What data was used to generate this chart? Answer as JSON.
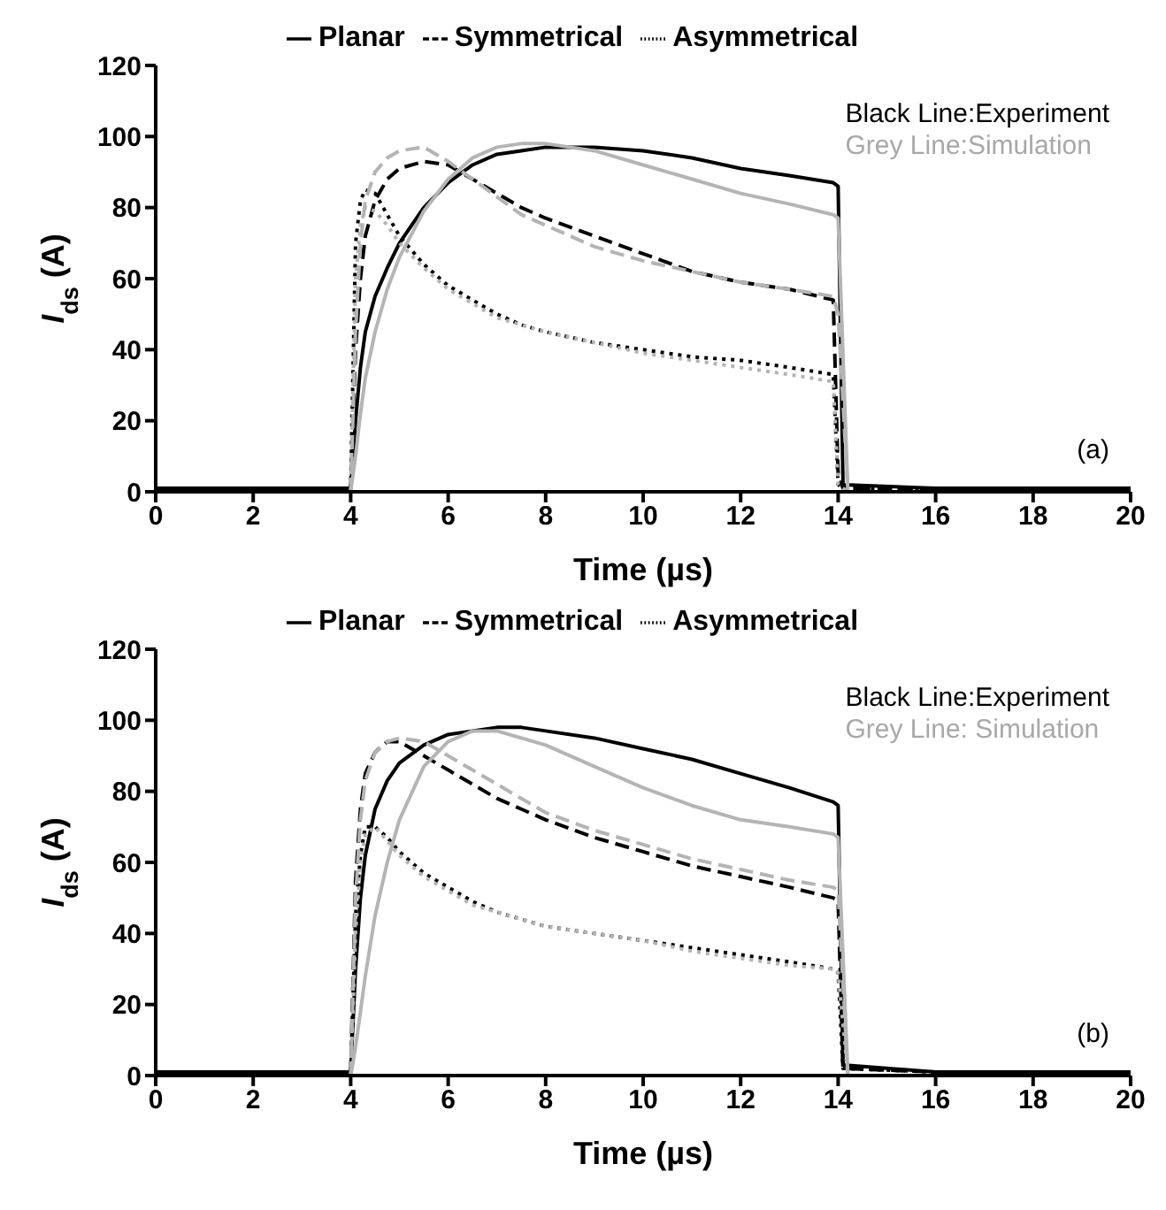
{
  "chart_data": [
    {
      "type": "line",
      "xlabel": "Time (µs)",
      "ylabel": "I$_{ds}$ (A)",
      "xlim": [
        0,
        20
      ],
      "ylim": [
        0,
        120
      ],
      "xticks": [
        0,
        2,
        4,
        6,
        8,
        10,
        12,
        14,
        16,
        18,
        20
      ],
      "yticks": [
        0,
        20,
        40,
        60,
        80,
        100,
        120
      ],
      "grid": false,
      "legend": "top",
      "marker": "none",
      "annotations": [
        "Black Line:Experiment",
        "Grey Line:Simulation",
        "(a)"
      ],
      "series": [
        {
          "name": "Planar",
          "color": "#000000",
          "line_style": "solid",
          "x": [
            0,
            2,
            4,
            4.1,
            4.2,
            4.3,
            4.5,
            4.75,
            5,
            5.5,
            6,
            6.5,
            7,
            7.5,
            8,
            9,
            10,
            11,
            12,
            13,
            13.9,
            14,
            14.1,
            16,
            18,
            20
          ],
          "values": [
            1,
            1,
            1,
            20,
            35,
            45,
            55,
            63,
            70,
            80,
            87,
            92,
            95,
            96,
            97,
            97,
            96,
            94,
            91,
            89,
            87,
            86,
            2,
            1,
            1,
            1
          ]
        },
        {
          "name": "Symmetrical",
          "color": "#000000",
          "line_style": "dashed",
          "x": [
            0,
            2,
            4,
            4.1,
            4.2,
            4.3,
            4.5,
            4.75,
            5,
            5.5,
            6,
            6.5,
            7,
            7.5,
            8,
            9,
            10,
            11,
            12,
            13,
            13.9,
            14,
            14.1,
            16,
            18,
            20
          ],
          "values": [
            1,
            1,
            1,
            40,
            60,
            72,
            82,
            88,
            91,
            93,
            92,
            88,
            84,
            80,
            77,
            72,
            67,
            62,
            59,
            57,
            54,
            5,
            1,
            1,
            1,
            1
          ]
        },
        {
          "name": "Asymmetrical",
          "color": "#000000",
          "line_style": "dotted",
          "x": [
            0,
            2,
            4,
            4.1,
            4.2,
            4.3,
            4.5,
            4.75,
            5,
            5.5,
            6,
            6.5,
            7,
            7.5,
            8,
            9,
            10,
            11,
            12,
            13,
            13.9,
            14,
            14.1,
            16,
            18,
            20
          ],
          "values": [
            1,
            1,
            1,
            70,
            82,
            85,
            84,
            78,
            72,
            64,
            58,
            54,
            50,
            47,
            45,
            42,
            40,
            38,
            37,
            35,
            33,
            2,
            1,
            1,
            1,
            1
          ]
        },
        {
          "color": "#b4b4b4",
          "line_style": "solid",
          "x": [
            4,
            4.1,
            4.2,
            4.3,
            4.5,
            4.75,
            5,
            5.5,
            6,
            6.5,
            7,
            7.5,
            8,
            9,
            10,
            11,
            12,
            13,
            13.9,
            14,
            14.2,
            19
          ],
          "values": [
            0,
            10,
            22,
            32,
            45,
            57,
            66,
            79,
            88,
            94,
            97,
            98,
            98,
            96,
            92,
            88,
            84,
            81,
            78,
            77,
            0,
            0
          ]
        },
        {
          "color": "#b4b4b4",
          "line_style": "dashed",
          "x": [
            4,
            4.1,
            4.2,
            4.3,
            4.5,
            4.75,
            5,
            5.5,
            6,
            6.5,
            7,
            7.5,
            8,
            9,
            10,
            11,
            12,
            13,
            13.9,
            14,
            14.2,
            19
          ],
          "values": [
            0,
            45,
            70,
            82,
            90,
            94,
            96,
            97,
            93,
            88,
            83,
            78,
            75,
            69,
            65,
            62,
            59,
            57,
            55,
            50,
            0,
            0
          ]
        },
        {
          "color": "#b4b4b4",
          "line_style": "dotted",
          "x": [
            4,
            4.1,
            4.2,
            4.3,
            4.5,
            4.75,
            5,
            5.5,
            6,
            6.5,
            7,
            7.5,
            8,
            9,
            10,
            11,
            12,
            13,
            13.9,
            14,
            14.2,
            19
          ],
          "values": [
            0,
            60,
            75,
            80,
            79,
            75,
            70,
            63,
            57,
            53,
            49,
            47,
            45,
            42,
            39,
            37,
            35,
            33,
            31,
            2,
            0,
            0
          ]
        }
      ]
    },
    {
      "type": "line",
      "xlabel": "Time (µs)",
      "ylabel": "I$_{ds}$ (A)",
      "xlim": [
        0,
        20
      ],
      "ylim": [
        0,
        120
      ],
      "xticks": [
        0,
        2,
        4,
        6,
        8,
        10,
        12,
        14,
        16,
        18,
        20
      ],
      "yticks": [
        0,
        20,
        40,
        60,
        80,
        100,
        120
      ],
      "grid": false,
      "legend": "top",
      "marker": "none",
      "annotations": [
        "Black Line:Experiment",
        "Grey Line: Simulation",
        "(b)"
      ],
      "series": [
        {
          "name": "Planar",
          "color": "#000000",
          "line_style": "solid",
          "x": [
            0,
            2,
            4,
            4.1,
            4.2,
            4.3,
            4.5,
            4.75,
            5,
            5.5,
            6,
            6.5,
            7,
            7.5,
            8,
            9,
            10,
            11,
            12,
            13,
            13.9,
            14,
            14.1,
            16,
            18,
            20
          ],
          "values": [
            1,
            1,
            1,
            30,
            50,
            62,
            75,
            83,
            88,
            93,
            96,
            97,
            98,
            98,
            97,
            95,
            92,
            89,
            85,
            81,
            77,
            76,
            3,
            1,
            1,
            1
          ]
        },
        {
          "name": "Symmetrical",
          "color": "#000000",
          "line_style": "dashed",
          "x": [
            0,
            2,
            4,
            4.1,
            4.2,
            4.3,
            4.5,
            4.75,
            5,
            5.5,
            6,
            6.5,
            7,
            7.5,
            8,
            9,
            10,
            11,
            12,
            13,
            13.9,
            14,
            14.1,
            16,
            18,
            20
          ],
          "values": [
            1,
            1,
            1,
            55,
            75,
            85,
            91,
            94,
            94,
            90,
            86,
            82,
            78,
            75,
            72,
            67,
            63,
            59,
            56,
            53,
            50,
            49,
            2,
            1,
            1,
            1
          ]
        },
        {
          "name": "Asymmetrical",
          "color": "#000000",
          "line_style": "dotted",
          "x": [
            0,
            2,
            4,
            4.1,
            4.2,
            4.3,
            4.5,
            4.75,
            5,
            5.5,
            6,
            6.5,
            7,
            7.5,
            8,
            9,
            10,
            11,
            12,
            13,
            13.9,
            14,
            14.1,
            16,
            18,
            20
          ],
          "values": [
            1,
            1,
            1,
            45,
            62,
            70,
            70,
            67,
            63,
            57,
            53,
            49,
            46,
            44,
            42,
            40,
            38,
            36,
            34,
            32,
            30,
            29,
            2,
            1,
            1,
            1
          ]
        },
        {
          "color": "#b4b4b4",
          "line_style": "solid",
          "x": [
            4,
            4.1,
            4.2,
            4.3,
            4.5,
            4.75,
            5,
            5.5,
            6,
            6.5,
            7,
            7.5,
            8,
            9,
            10,
            11,
            12,
            13,
            13.9,
            14,
            14.2,
            19
          ],
          "values": [
            0,
            8,
            18,
            28,
            45,
            60,
            72,
            87,
            94,
            97,
            97,
            95,
            93,
            87,
            81,
            76,
            72,
            70,
            68,
            67,
            0,
            0
          ]
        },
        {
          "color": "#b4b4b4",
          "line_style": "dashed",
          "x": [
            4,
            4.1,
            4.2,
            4.3,
            4.5,
            4.75,
            5,
            5.5,
            6,
            6.5,
            7,
            7.5,
            8,
            9,
            10,
            11,
            12,
            13,
            13.9,
            14,
            14.2,
            19
          ],
          "values": [
            0,
            50,
            72,
            83,
            91,
            94,
            95,
            94,
            90,
            86,
            82,
            78,
            74,
            69,
            65,
            61,
            58,
            55,
            53,
            52,
            0,
            0
          ]
        },
        {
          "color": "#b4b4b4",
          "line_style": "dotted",
          "x": [
            4,
            4.1,
            4.2,
            4.3,
            4.5,
            4.75,
            5,
            5.5,
            6,
            6.5,
            7,
            7.5,
            8,
            9,
            10,
            11,
            12,
            13,
            13.9,
            14,
            14.2,
            19
          ],
          "values": [
            0,
            40,
            60,
            68,
            70,
            66,
            62,
            56,
            52,
            48,
            46,
            44,
            42,
            40,
            38,
            35,
            33,
            31,
            30,
            29,
            0,
            0
          ]
        }
      ]
    }
  ]
}
